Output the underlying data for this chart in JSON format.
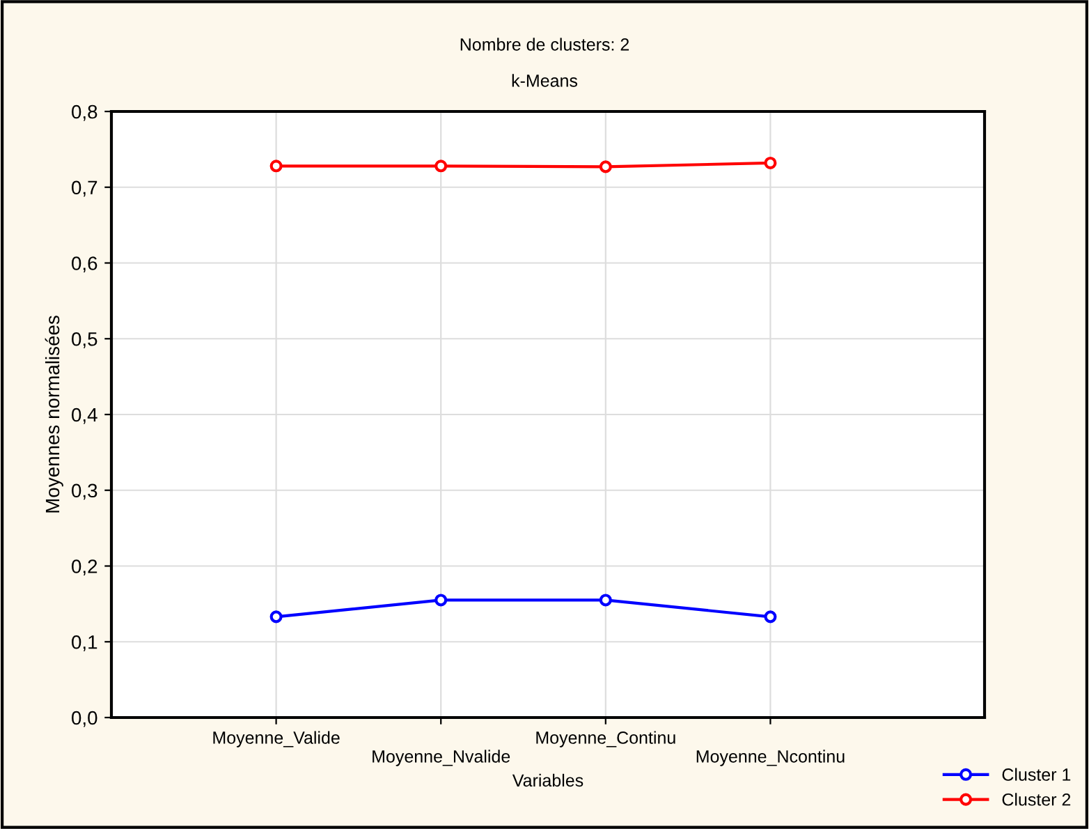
{
  "chart_data": {
    "type": "line",
    "title": "Nombre de clusters: 2",
    "subtitle": "k-Means",
    "xlabel": "Variables",
    "ylabel": "Moyennes normalisées",
    "categories": [
      "Moyenne_Valide",
      "Moyenne_Nvalide",
      "Moyenne_Continu",
      "Moyenne_Ncontinu"
    ],
    "series": [
      {
        "name": "Cluster 1",
        "color": "#0000ff",
        "values": [
          0.133,
          0.155,
          0.155,
          0.133
        ]
      },
      {
        "name": "Cluster 2",
        "color": "#ff0000",
        "values": [
          0.728,
          0.728,
          0.727,
          0.732
        ]
      }
    ],
    "ylim": [
      0,
      0.8
    ],
    "yticks": [
      {
        "value": 0,
        "label": "0,0"
      },
      {
        "value": 0.1,
        "label": "0,1"
      },
      {
        "value": 0.2,
        "label": "0,2"
      },
      {
        "value": 0.3,
        "label": "0,3"
      },
      {
        "value": 0.4,
        "label": "0,4"
      },
      {
        "value": 0.5,
        "label": "0,5"
      },
      {
        "value": 0.6,
        "label": "0,6"
      },
      {
        "value": 0.7,
        "label": "0,7"
      },
      {
        "value": 0.8,
        "label": "0,8"
      }
    ],
    "grid": true,
    "legend": "bottom right",
    "marker": "circle",
    "line_style": "solid"
  }
}
